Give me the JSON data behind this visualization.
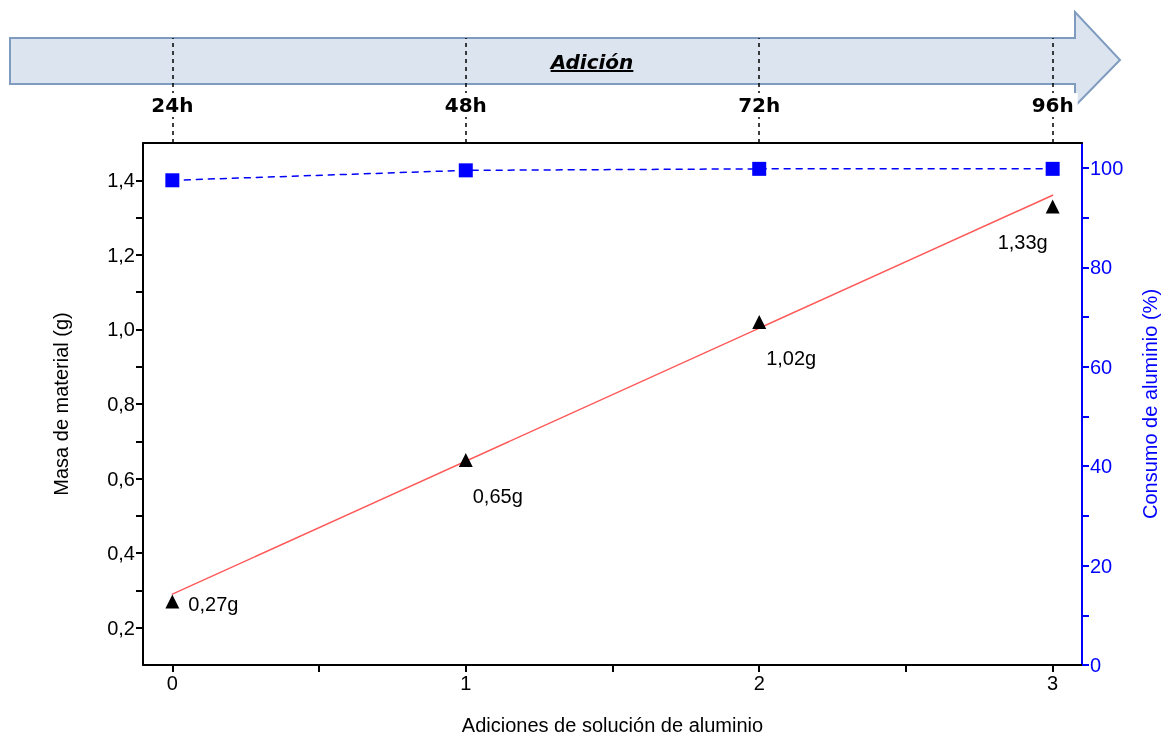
{
  "chart_data": {
    "type": "scatter",
    "xlabel": "Adiciones de solución de aluminio",
    "ylabel": "Masa de material (g)",
    "y2label": "Consumo de aluminio (%)",
    "annotations": [
      "Adición"
    ],
    "xlim": [
      -0.1,
      3.1
    ],
    "xticks": [
      0,
      {
        "value": 0.5,
        "label": null
      },
      1,
      {
        "value": 1.5,
        "label": null
      },
      2,
      {
        "value": 2.5,
        "label": null
      },
      3
    ],
    "x2lim": [
      21.6,
      98.4
    ],
    "x2ticks": [
      {
        "value": 24,
        "label": "24h"
      },
      {
        "value": 48,
        "label": "48h"
      },
      {
        "value": 72,
        "label": "72h"
      },
      {
        "value": 96,
        "label": "96h"
      }
    ],
    "ylim": [
      0.1,
      1.5
    ],
    "yticks": [
      {
        "value": 0.2,
        "label": "0,2"
      },
      {
        "value": 0.3,
        "label": null
      },
      {
        "value": 0.4,
        "label": "0,4"
      },
      {
        "value": 0.5,
        "label": null
      },
      {
        "value": 0.6,
        "label": "0,6"
      },
      {
        "value": 0.7,
        "label": null
      },
      {
        "value": 0.8,
        "label": "0,8"
      },
      {
        "value": 0.9,
        "label": null
      },
      {
        "value": 1.0,
        "label": "1,0"
      },
      {
        "value": 1.1,
        "label": null
      },
      {
        "value": 1.2,
        "label": "1,2"
      },
      {
        "value": 1.3,
        "label": null
      },
      {
        "value": 1.4,
        "label": "1,4"
      }
    ],
    "y2lim": [
      0,
      105
    ],
    "y2ticks": [
      0,
      {
        "value": 10,
        "label": null
      },
      20,
      {
        "value": 30,
        "label": null
      },
      40,
      {
        "value": 50,
        "label": null
      },
      60,
      {
        "value": 70,
        "label": null
      },
      80,
      {
        "value": 90,
        "label": null
      },
      100
    ],
    "grid": false,
    "series": [
      {
        "type": "line",
        "color": "#ff5a5a",
        "x": [
          0,
          3
        ],
        "values": [
          0.29,
          1.36
        ],
        "marker": "none",
        "line_style": "solid"
      },
      {
        "color": "#000000",
        "x": [
          0,
          1,
          2,
          3
        ],
        "values": [
          0.27,
          0.65,
          1.02,
          1.33
        ],
        "marker": "triangle",
        "value_labels": [
          "0,27g",
          "0,65g",
          "1,02g",
          "1,33g"
        ]
      },
      {
        "type": "line",
        "color": "#0000ff",
        "x": [
          0,
          1,
          2,
          3
        ],
        "values": [
          97.5,
          99.5,
          99.8,
          99.8
        ],
        "marker": "square",
        "line_style": "dashed",
        "axis": "y2"
      }
    ]
  }
}
